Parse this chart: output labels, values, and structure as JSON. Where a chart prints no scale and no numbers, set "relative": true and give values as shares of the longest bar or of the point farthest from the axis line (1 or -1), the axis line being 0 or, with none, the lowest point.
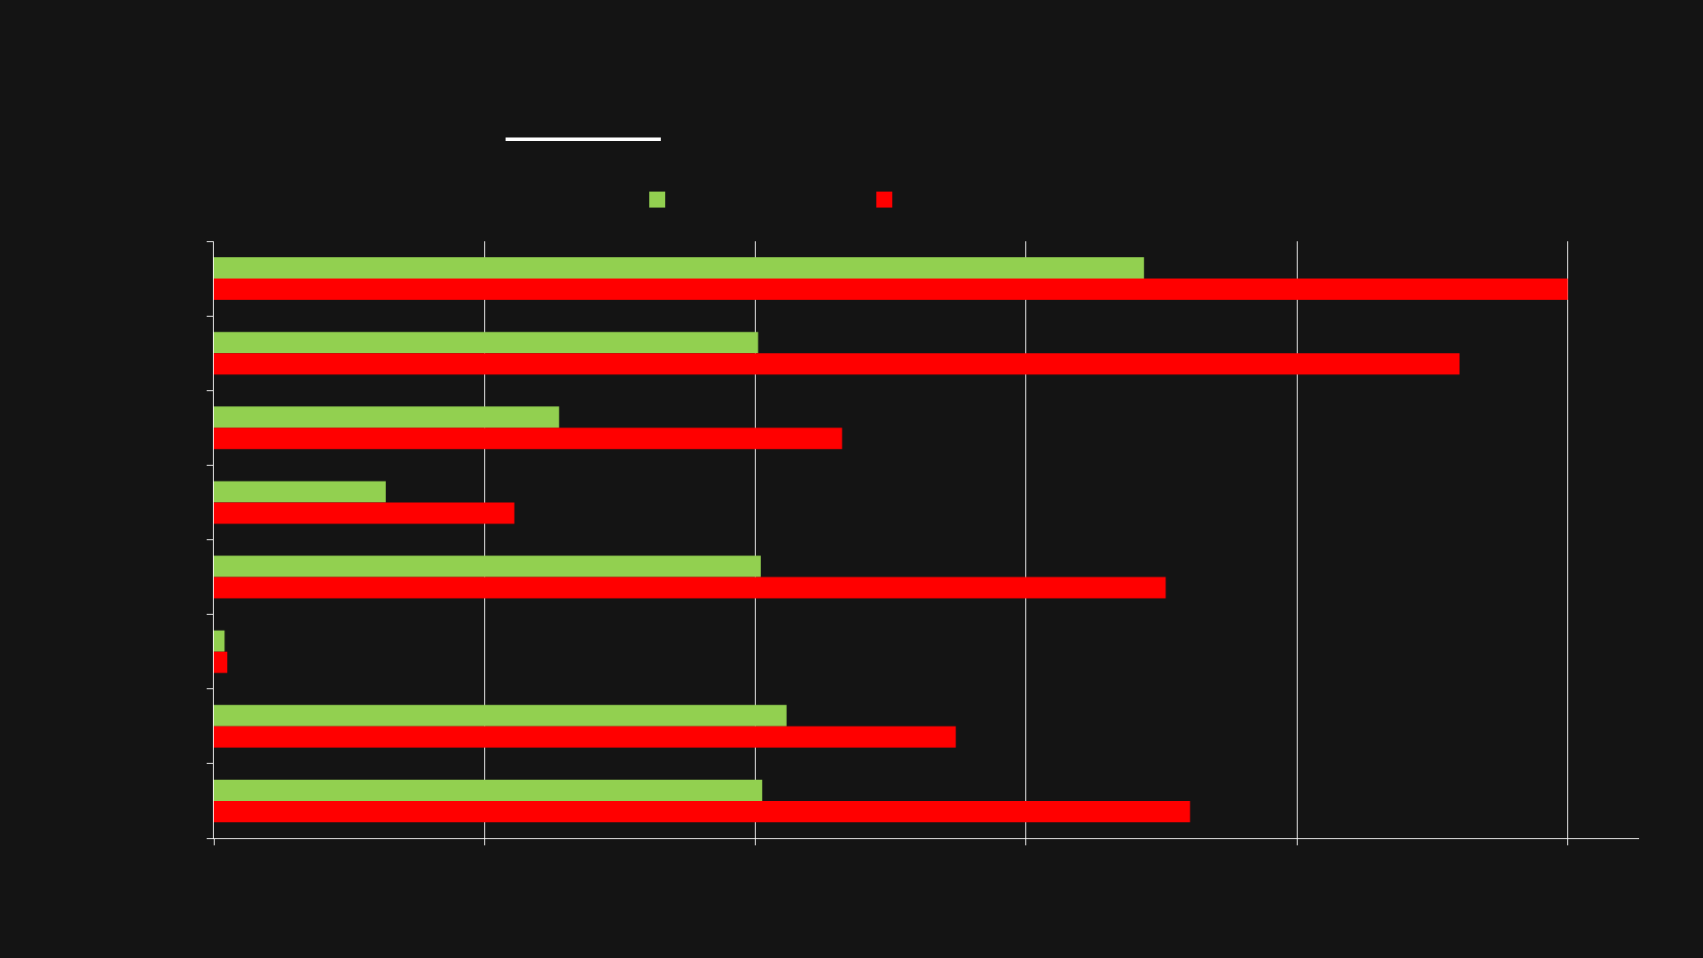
{
  "chart_data": {
    "type": "bar",
    "orientation": "horizontal",
    "relative": true,
    "categories": [
      null,
      null,
      null,
      null,
      null,
      null,
      null,
      null
    ],
    "series": [
      {
        "color": "#92d050",
        "values": [
          0.687,
          0.402,
          0.255,
          0.127,
          0.404,
          0.008,
          0.423,
          0.405
        ]
      },
      {
        "color": "#ff0000",
        "values": [
          1,
          0.92,
          0.464,
          0.222,
          0.703,
          0.01,
          0.548,
          0.721
        ]
      }
    ],
    "grid": "x"
  }
}
